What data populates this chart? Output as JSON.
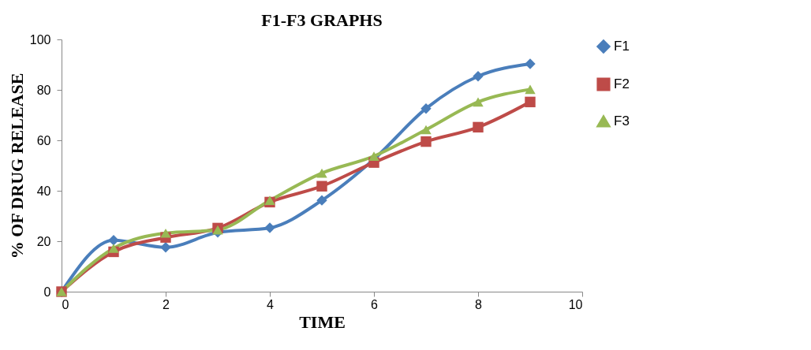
{
  "chart_data": {
    "type": "line",
    "title": "F1-F3 GRAPHS",
    "xlabel": "TIME",
    "ylabel": "% OF DRUG RELEASE",
    "x": [
      0,
      1,
      2,
      3,
      4,
      5,
      6,
      7,
      8,
      9
    ],
    "series": [
      {
        "name": "F1",
        "color": "#4a7ebb",
        "marker": "diamond",
        "values": [
          0,
          20.4,
          17.6,
          23.5,
          25.3,
          36.2,
          52.5,
          72.6,
          85.4,
          90.3
        ]
      },
      {
        "name": "F2",
        "color": "#be4b48",
        "marker": "square",
        "values": [
          0,
          15.8,
          21.5,
          25.2,
          35.5,
          41.8,
          51.2,
          59.5,
          65.2,
          75.2
        ]
      },
      {
        "name": "F3",
        "color": "#98b954",
        "marker": "triangle",
        "values": [
          0,
          17.2,
          23.2,
          24.5,
          36.2,
          47.0,
          53.7,
          64.2,
          75.2,
          80.2
        ]
      }
    ],
    "xlim": [
      0,
      10
    ],
    "xticks": [
      0,
      2,
      4,
      6,
      8,
      10
    ],
    "ylim": [
      0,
      100
    ],
    "yticks": [
      0,
      20,
      40,
      60,
      80,
      100
    ],
    "grid": false,
    "legend": "right",
    "line_style": "solid"
  }
}
